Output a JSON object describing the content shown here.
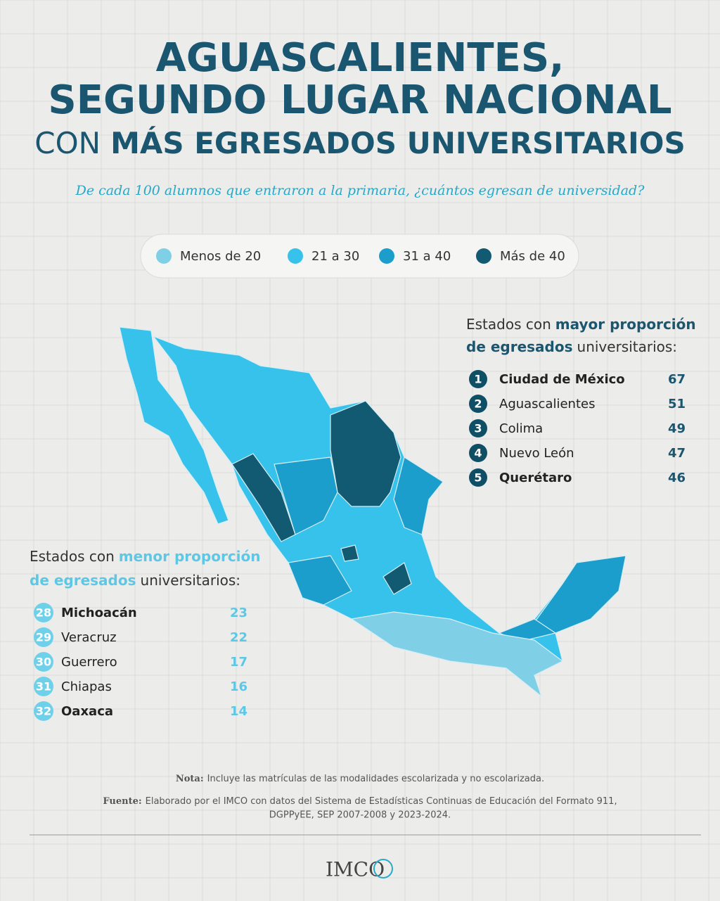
{
  "header": {
    "title_line1": "AGUASCALIENTES,",
    "title_line2": "SEGUNDO LUGAR NACIONAL",
    "title_line3_regular": "CON",
    "title_line3_bold": "MÁS EGRESADOS UNIVERSITARIOS",
    "subtitle": "De cada 100 alumnos que entraron a la primaria, ¿cuántos egresan de universidad?"
  },
  "legend": [
    {
      "label": "Menos de 20",
      "color": "#7fcfe6"
    },
    {
      "label": "21 a 30",
      "color": "#36c2ea"
    },
    {
      "label": "31 a 40",
      "color": "#1b9ecb"
    },
    {
      "label": "Más de 40",
      "color": "#115a72"
    }
  ],
  "top_states": {
    "heading_line1_regular": "Estados con",
    "heading_line1_bold": "mayor proporción",
    "heading_line2_bold": "de egresados",
    "heading_line2_regular": "universitarios:",
    "rows": [
      {
        "rank": 1,
        "name": "Ciudad de México",
        "value": 67
      },
      {
        "rank": 2,
        "name": "Aguascalientes",
        "value": 51
      },
      {
        "rank": 3,
        "name": "Colima",
        "value": 49
      },
      {
        "rank": 4,
        "name": "Nuevo León",
        "value": 47
      },
      {
        "rank": 5,
        "name": "Querétaro",
        "value": 46
      }
    ]
  },
  "bottom_states": {
    "heading_line1_regular": "Estados con",
    "heading_line1_bold": "menor proporción",
    "heading_line2_bold": "de egresados",
    "heading_line2_regular": "universitarios:",
    "rows": [
      {
        "rank": 28,
        "name": "Michoacán",
        "value": 23
      },
      {
        "rank": 29,
        "name": "Veracruz",
        "value": 22
      },
      {
        "rank": 30,
        "name": "Guerrero",
        "value": 17
      },
      {
        "rank": 31,
        "name": "Chiapas",
        "value": 16
      },
      {
        "rank": 32,
        "name": "Oaxaca",
        "value": 14
      }
    ]
  },
  "footer": {
    "note_label": "Nota:",
    "note_text": "Incluye las matrículas de las modalidades escolarizada y no escolarizada.",
    "source_label": "Fuente:",
    "source_line1": "Elaborado por el IMCO con datos del Sistema de Estadísticas Continuas de Educación del Formato 911,",
    "source_line2": "DGPPyEE, SEP 2007-2008 y 2023-2024.",
    "logo": "IMCO"
  }
}
